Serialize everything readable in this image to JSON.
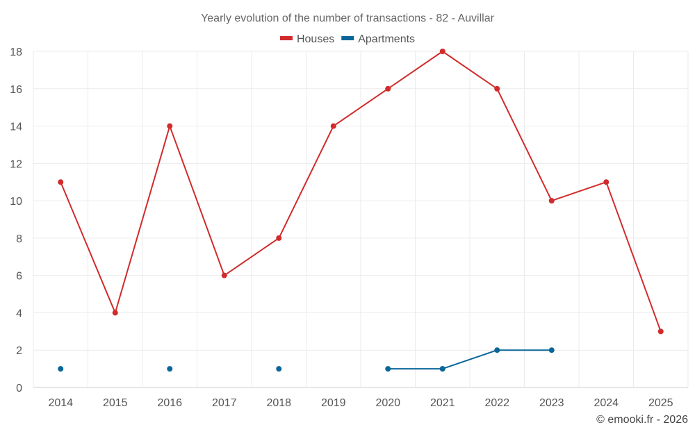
{
  "chart_data": {
    "type": "line",
    "title": "Yearly evolution of the number of transactions - 82 - Auvillar",
    "categories": [
      "2014",
      "2015",
      "2016",
      "2017",
      "2018",
      "2019",
      "2020",
      "2021",
      "2022",
      "2023",
      "2024",
      "2025"
    ],
    "series": [
      {
        "name": "Houses",
        "color": "#d12b2b",
        "values": [
          11,
          4,
          14,
          6,
          8,
          14,
          16,
          18,
          16,
          10,
          11,
          3
        ]
      },
      {
        "name": "Apartments",
        "color": "#0a6699",
        "values": [
          1,
          null,
          1,
          null,
          1,
          null,
          1,
          1,
          2,
          2,
          null,
          null
        ]
      }
    ],
    "ylim": [
      0,
      18
    ],
    "yticks": [
      0,
      2,
      4,
      6,
      8,
      10,
      12,
      14,
      16,
      18
    ],
    "xlabel": "",
    "ylabel": "",
    "grid": true,
    "legend_position": "top-center"
  },
  "credit": "© emooki.fr - 2026"
}
